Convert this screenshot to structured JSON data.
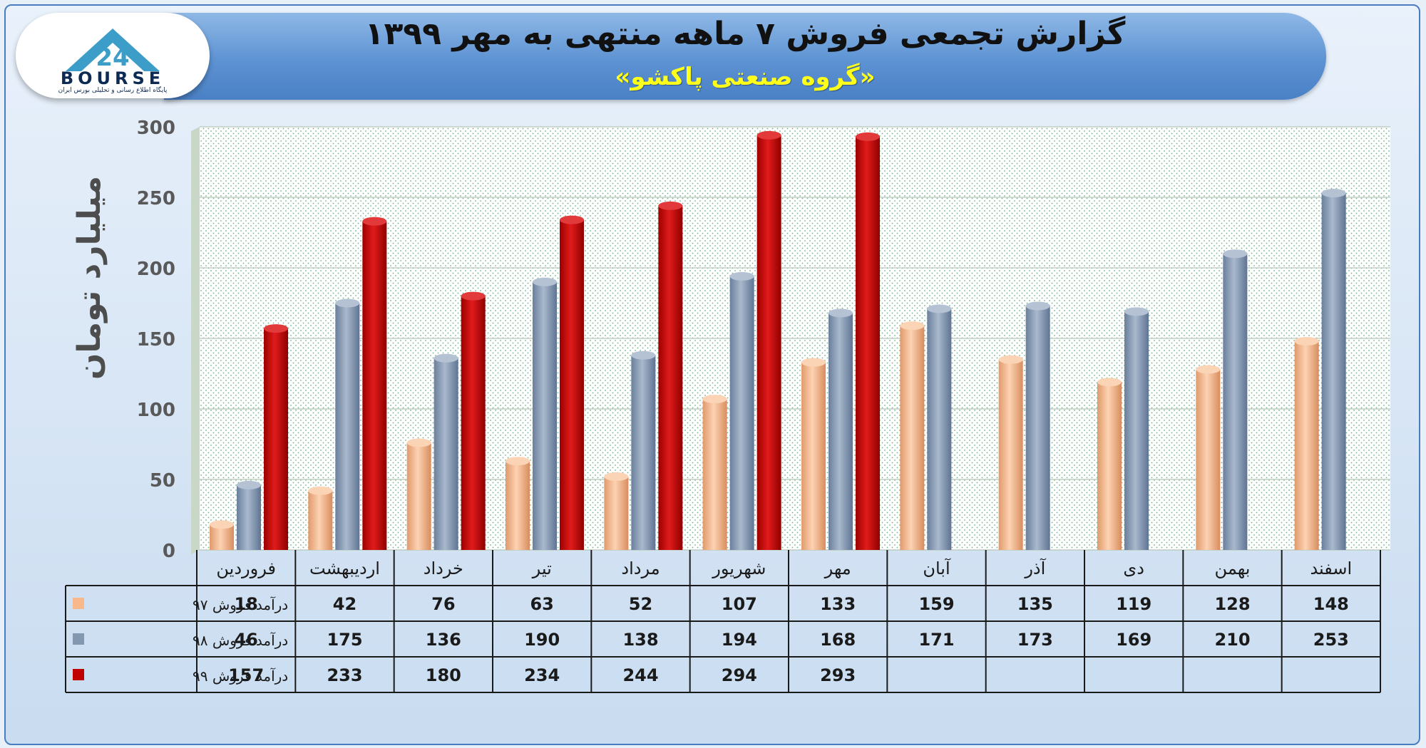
{
  "header": {
    "title": "گزارش تجمعی فروش ۷ ماهه منتهی به مهر ۱۳۹۹",
    "subtitle": "«گروه صنعتی پاکشو»"
  },
  "logo": {
    "wordmark": "BOURSE",
    "mark_number": "24",
    "tagline": "پایگاه اطلاع رسانی و تحلیلی بورس ایران"
  },
  "colors": {
    "series_97": "#f8b88b",
    "series_98": "#8497b0",
    "series_99": "#c00000",
    "banner": "#5d93d3",
    "subtitle": "#ffff1a"
  },
  "chart_data": {
    "type": "bar",
    "ylabel": "میلیارد تومان",
    "ylim": [
      0,
      300
    ],
    "yticks": [
      "0",
      "50",
      "100",
      "150",
      "200",
      "250",
      "300"
    ],
    "grid": true,
    "categories": [
      "فروردین",
      "اردیبهشت",
      "خرداد",
      "تیر",
      "مرداد",
      "شهریور",
      "مهر",
      "آبان",
      "آذر",
      "دی",
      "بهمن",
      "اسفند"
    ],
    "series": [
      {
        "name": "درآمد فروش ۹۷",
        "color": "#f8b88b",
        "values": [
          18,
          42,
          76,
          63,
          52,
          107,
          133,
          159,
          135,
          119,
          128,
          148
        ]
      },
      {
        "name": "درآمد فروش ۹۸",
        "color": "#8497b0",
        "values": [
          46,
          175,
          136,
          190,
          138,
          194,
          168,
          171,
          173,
          169,
          210,
          253
        ]
      },
      {
        "name": "درآمد فروش ۹۹",
        "color": "#c00000",
        "values": [
          157,
          233,
          180,
          234,
          244,
          294,
          293,
          null,
          null,
          null,
          null,
          null
        ]
      }
    ]
  }
}
